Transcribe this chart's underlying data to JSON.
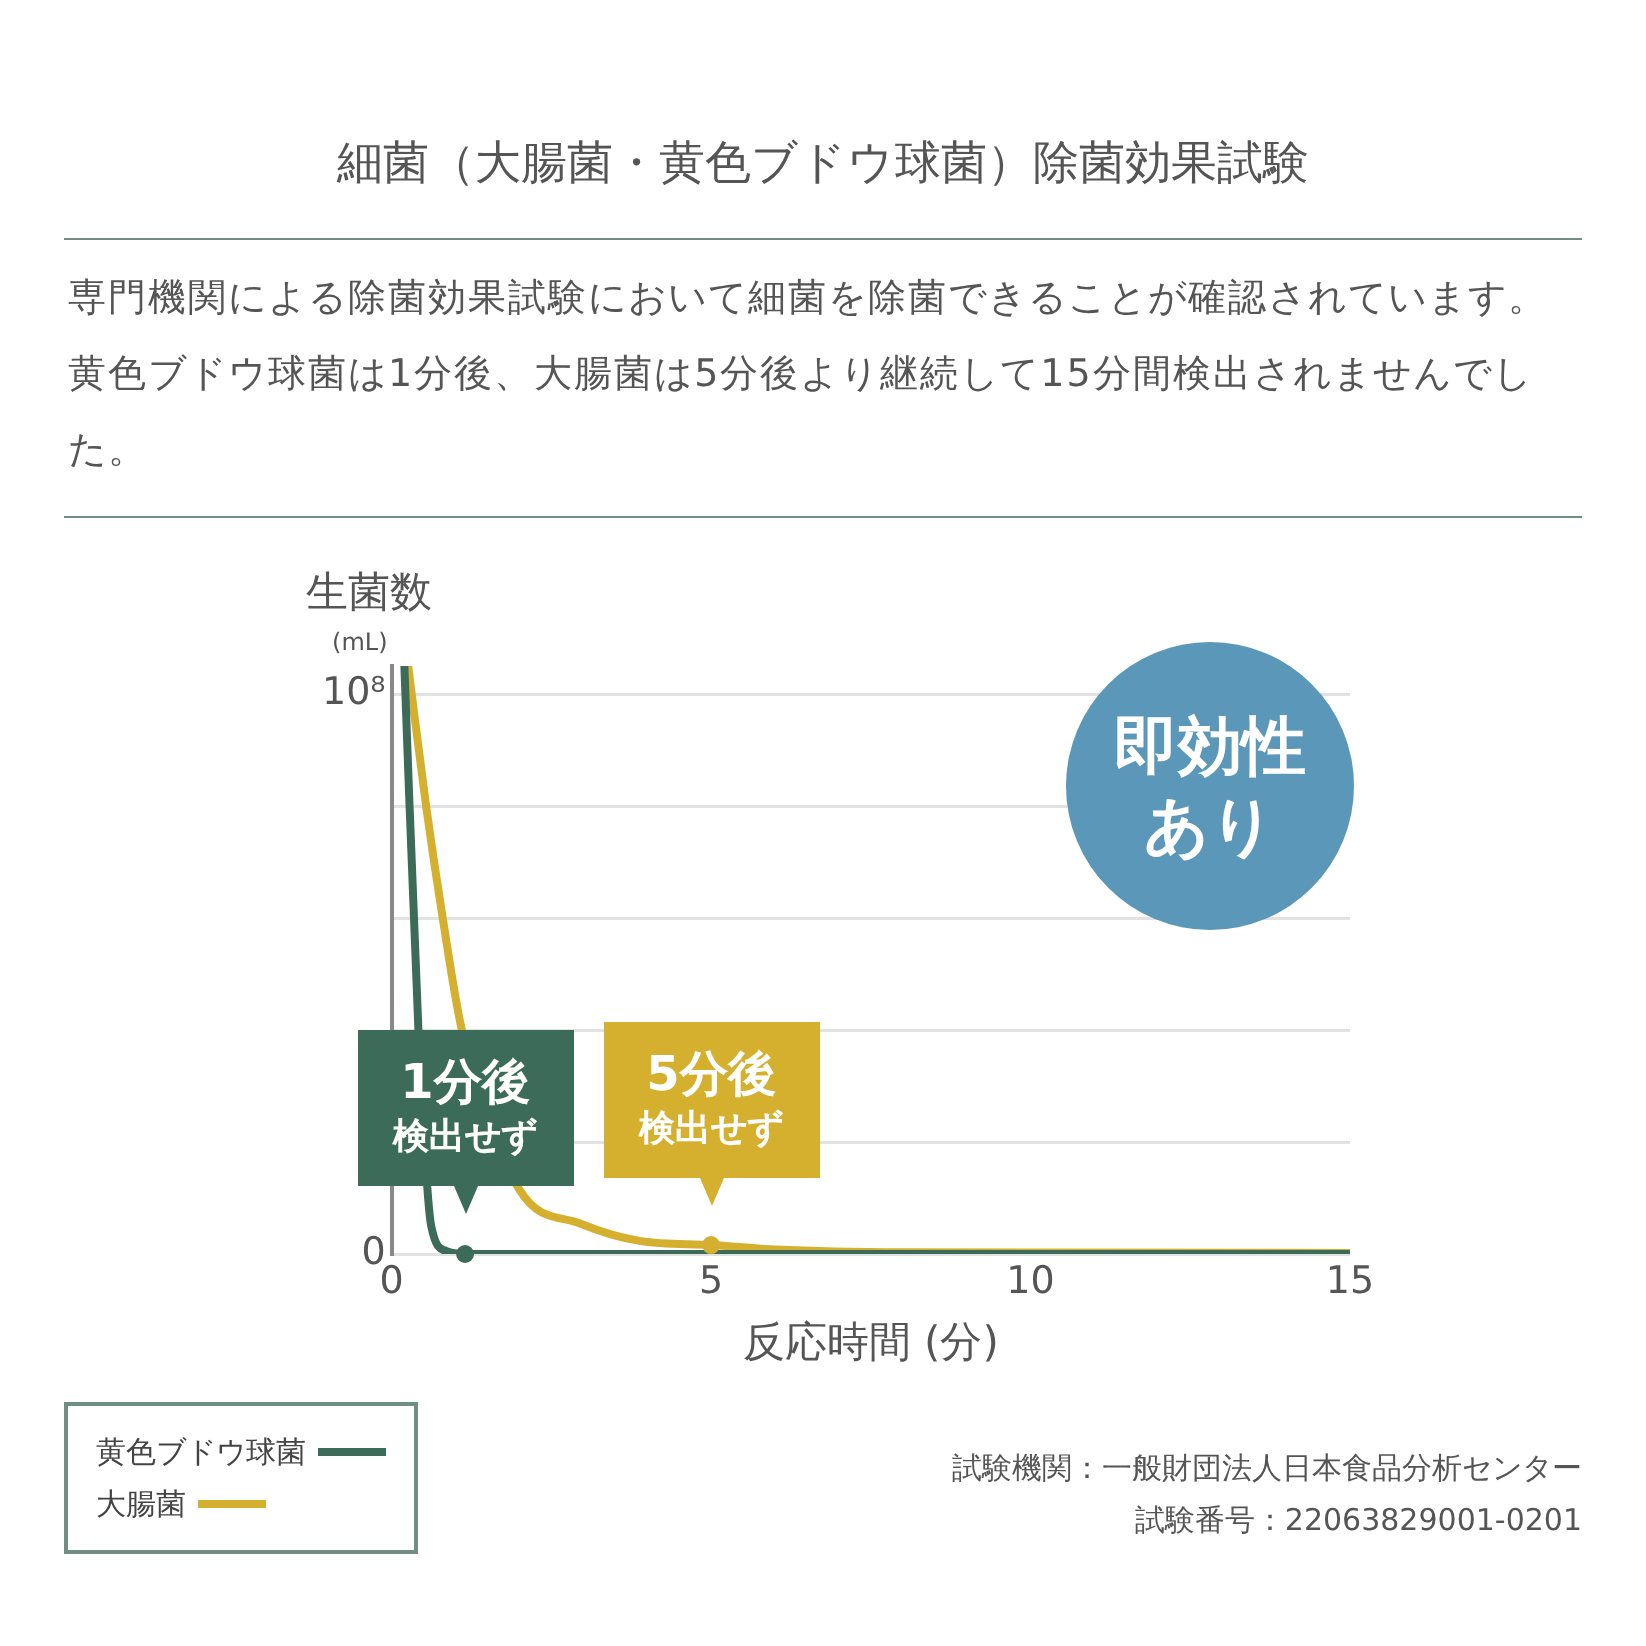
{
  "chart_data": {
    "type": "line",
    "title": "細菌（大腸菌・黄色ブドウ球菌）除菌効果試験",
    "subtitle": "専門機関による除菌効果試験において細菌を除菌できることが確認されています。黄色ブドウ球菌は1分後、大腸菌は5分後より継続して15分間検出されませんでした。",
    "xlabel": "反応時間 (分)",
    "ylabel": "生菌数\n(mL)",
    "xlim": [
      0,
      15
    ],
    "xticks": [
      0,
      5,
      10,
      15
    ],
    "ylim": [
      0,
      105000000
    ],
    "yticks": [
      0,
      {
        "value": 20000000,
        "label": null
      },
      {
        "value": 40000000,
        "label": null
      },
      {
        "value": 60000000,
        "label": null
      },
      {
        "value": 80000000,
        "label": null
      },
      {
        "value": 100000000,
        "label": "10⁸"
      }
    ],
    "grid": "y",
    "legend": "bottom left",
    "marker": "none",
    "line_style": "solid",
    "series": [
      {
        "name": "黄色ブドウ球菌",
        "color": "#3d6b5a",
        "x": [
          0.2,
          0.42,
          0.5,
          0.62,
          0.86,
          1.15,
          3,
          15
        ],
        "values": [
          105000000,
          40000000,
          null,
          5000000,
          500000,
          0,
          0,
          0
        ]
      },
      {
        "name": "大腸菌",
        "color": "#d4b02e",
        "x": [
          0.26,
          0.54,
          0.8,
          1.1,
          1.52,
          2.0,
          2.96,
          3.9,
          5,
          6,
          8,
          15
        ],
        "values": [
          105000000,
          80000000,
          60000000,
          40000000,
          null,
          11500000,
          5400000,
          2300000,
          1600000,
          800000,
          300000,
          200000
        ]
      }
    ],
    "annotations": [
      {
        "text": "1分後検出せず",
        "x": 1.15,
        "y": 0
      },
      {
        "text": "5分後検出せず",
        "x": 5,
        "y": 1600000
      },
      "即効性あり",
      "試験機関：一般財団法人日本食品分析センター",
      "試験番号：22063829001-0201"
    ]
  }
}
